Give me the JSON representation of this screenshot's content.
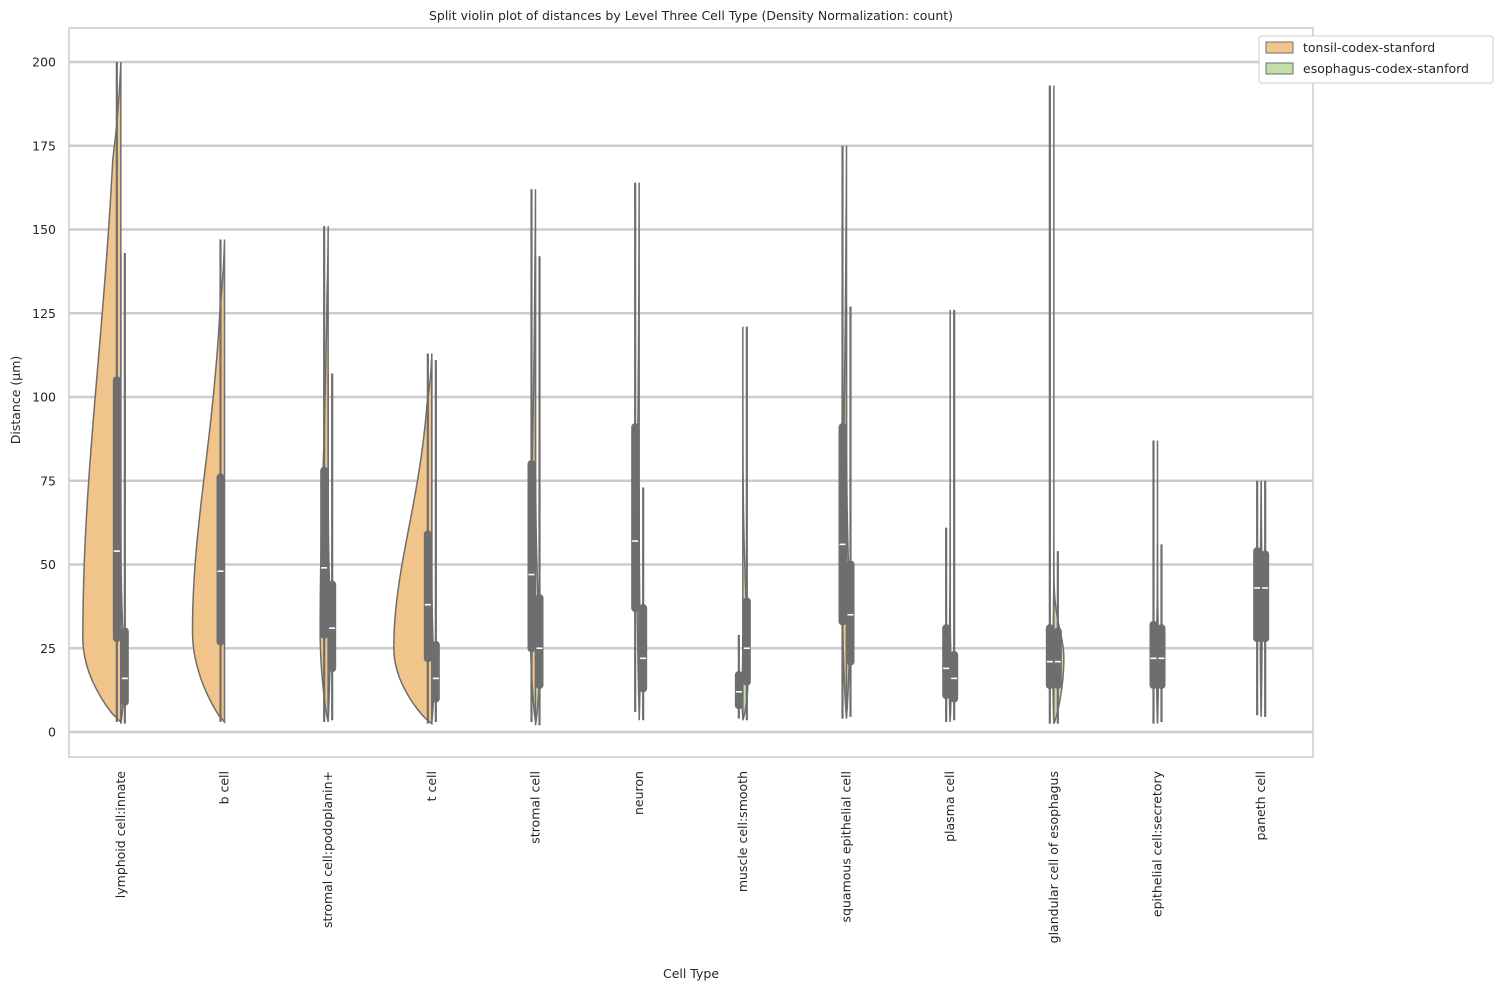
{
  "chart_data": {
    "type": "violin",
    "title": "Split violin plot of distances by Level Three Cell Type (Density Normalization: count)",
    "xlabel": "Cell Type",
    "ylabel": "Distance (µm)",
    "ylim": [
      -7.5,
      210
    ],
    "yticks": [
      0,
      25,
      50,
      75,
      100,
      125,
      150,
      175,
      200
    ],
    "grid": "horizontal",
    "legend_position": "top-right",
    "categories": [
      "lymphoid cell:innate",
      "b cell",
      "stromal cell:podoplanin+",
      "t cell",
      "stromal cell",
      "neuron",
      "muscle cell:smooth",
      "squamous epithelial cell",
      "plasma cell",
      "glandular cell of esophagus",
      "epithelial cell:secretory",
      "paneth cell"
    ],
    "series": [
      {
        "name": "tonsil-codex-stanford",
        "color": "#f0c48a",
        "side": "left",
        "stats": [
          {
            "min": 3,
            "q1": 28,
            "median": 54,
            "q3": 105,
            "max": 200,
            "max_width": 38,
            "mode": 28
          },
          {
            "min": 3,
            "q1": 27,
            "median": 48,
            "q3": 76,
            "max": 147,
            "max_width": 32,
            "mode": 30
          },
          {
            "min": 3,
            "q1": 29,
            "median": 49,
            "q3": 78,
            "max": 151,
            "max_width": 8,
            "mode": 30
          },
          {
            "min": 2.5,
            "q1": 22,
            "median": 38,
            "q3": 59,
            "max": 113,
            "max_width": 38,
            "mode": 25
          },
          {
            "min": 3,
            "q1": 25,
            "median": 47,
            "q3": 80,
            "max": 162,
            "max_width": 5,
            "mode": 30
          },
          {
            "min": 6,
            "q1": 37,
            "median": 57,
            "q3": 91,
            "max": 164,
            "max_width": 2,
            "mode": 50
          },
          {
            "min": 4,
            "q1": 8,
            "median": 12,
            "q3": 17,
            "max": 29,
            "max_width": 1,
            "mode": 12
          },
          {
            "min": 4,
            "q1": 33,
            "median": 56,
            "q3": 91,
            "max": 175,
            "max_width": 4,
            "mode": 40
          },
          {
            "min": 3,
            "q1": 11,
            "median": 19,
            "q3": 31,
            "max": 61,
            "max_width": 1,
            "mode": 18
          },
          {
            "min": 2.5,
            "q1": 14,
            "median": 21,
            "q3": 31,
            "max": 193,
            "max_width": 1,
            "mode": 20
          },
          {
            "min": 2.5,
            "q1": 14,
            "median": 22,
            "q3": 32,
            "max": 87,
            "max_width": 1,
            "mode": 22
          },
          {
            "min": 5,
            "q1": 28,
            "median": 43,
            "q3": 54,
            "max": 75,
            "max_width": 1,
            "mode": 40
          }
        ]
      },
      {
        "name": "esophagus-codex-stanford",
        "color": "#c2dea9",
        "side": "right",
        "stats": [
          {
            "min": 2.5,
            "q1": 9,
            "median": 16,
            "q3": 30,
            "max": 143,
            "max_width": 3,
            "mode": 15
          },
          null,
          {
            "min": 3.5,
            "q1": 19,
            "median": 31,
            "q3": 44,
            "max": 107,
            "max_width": 2,
            "mode": 30
          },
          {
            "min": 3,
            "q1": 10,
            "median": 16,
            "q3": 26,
            "max": 111,
            "max_width": 2,
            "mode": 15
          },
          {
            "min": 2,
            "q1": 14,
            "median": 25,
            "q3": 40,
            "max": 142,
            "max_width": 4,
            "mode": 20
          },
          {
            "min": 3.5,
            "q1": 13,
            "median": 22,
            "q3": 37,
            "max": 73,
            "max_width": 1,
            "mode": 22
          },
          {
            "min": 3.5,
            "q1": 15,
            "median": 25,
            "q3": 39,
            "max": 121,
            "max_width": 5,
            "mode": 15
          },
          {
            "min": 4.5,
            "q1": 21,
            "median": 35,
            "q3": 50,
            "max": 127,
            "max_width": 3,
            "mode": 30
          },
          {
            "min": 3.5,
            "q1": 10,
            "median": 16,
            "q3": 23,
            "max": 126,
            "max_width": 1,
            "mode": 15
          },
          {
            "min": 2.5,
            "q1": 14,
            "median": 21,
            "q3": 30,
            "max": 54,
            "max_width": 10,
            "mode": 22
          },
          {
            "min": 3,
            "q1": 14,
            "median": 22,
            "q3": 31,
            "max": 56,
            "max_width": 1,
            "mode": 22
          },
          {
            "min": 4.5,
            "q1": 28,
            "median": 43,
            "q3": 53,
            "max": 75,
            "max_width": 1,
            "mode": 40
          }
        ]
      }
    ]
  }
}
